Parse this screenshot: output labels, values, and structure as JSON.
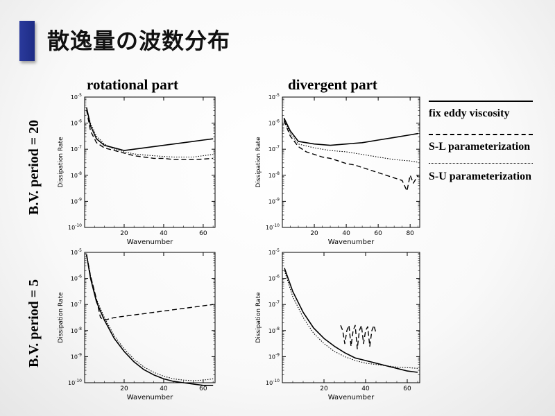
{
  "slide": {
    "title": "散逸量の波数分布",
    "col_titles": [
      "rotational part",
      "divergent part"
    ],
    "row_titles": [
      "B.V. period = 20",
      "B.V. period = 5"
    ]
  },
  "legend": [
    {
      "name": "fix eddy viscosity",
      "style": "solid"
    },
    {
      "name": "S-L parameterization",
      "style": "dashed"
    },
    {
      "name": "S-U parameterization",
      "style": "dotted"
    }
  ],
  "chart_data": [
    {
      "type": "line",
      "id": "top-left",
      "xlabel": "Wavenumber",
      "ylabel": "Dissipation Rate",
      "xlim": [
        0,
        66
      ],
      "ylim_log10": [
        -10,
        -5
      ],
      "xticks": [
        20,
        40,
        60
      ],
      "xtick_labels": [
        "20",
        "40",
        "60"
      ],
      "yticks": [
        -10,
        -9,
        -8,
        -7,
        -6,
        -5
      ],
      "ytick_labels": [
        "10-10",
        "10-9",
        "10-8",
        "10-7",
        "10-6",
        "10-5"
      ],
      "series": [
        {
          "style": "solid",
          "x": [
            1,
            3,
            6,
            10,
            15,
            20,
            25,
            30,
            35,
            40,
            45,
            50,
            55,
            60,
            65
          ],
          "log10_y": [
            -5.4,
            -6.1,
            -6.6,
            -6.85,
            -6.95,
            -7.05,
            -7.0,
            -6.95,
            -6.9,
            -6.85,
            -6.8,
            -6.75,
            -6.7,
            -6.65,
            -6.6
          ]
        },
        {
          "style": "dashed",
          "x": [
            1,
            3,
            6,
            10,
            15,
            20,
            25,
            30,
            35,
            40,
            45,
            50,
            55,
            60,
            65
          ],
          "log10_y": [
            -5.5,
            -6.3,
            -6.75,
            -6.95,
            -7.05,
            -7.15,
            -7.25,
            -7.3,
            -7.35,
            -7.35,
            -7.4,
            -7.4,
            -7.4,
            -7.38,
            -7.35
          ]
        },
        {
          "style": "dotted",
          "x": [
            1,
            3,
            6,
            10,
            15,
            20,
            25,
            30,
            35,
            40,
            45,
            50,
            55,
            60,
            65
          ],
          "log10_y": [
            -5.45,
            -6.0,
            -6.5,
            -6.8,
            -7.0,
            -7.1,
            -7.18,
            -7.22,
            -7.25,
            -7.28,
            -7.3,
            -7.3,
            -7.3,
            -7.25,
            -7.2
          ]
        }
      ]
    },
    {
      "type": "line",
      "id": "top-right",
      "xlabel": "Wavenumber",
      "ylabel": "Dissipation Rate",
      "xlim": [
        0,
        86
      ],
      "ylim_log10": [
        -10,
        -5
      ],
      "xticks": [
        20,
        40,
        60,
        80
      ],
      "xtick_labels": [
        "20",
        "40",
        "60",
        "80"
      ],
      "yticks": [
        -10,
        -9,
        -8,
        -7,
        -6,
        -5
      ],
      "ytick_labels": [
        "10-10",
        "10-9",
        "10-8",
        "10-7",
        "10-6",
        "10-5"
      ],
      "series": [
        {
          "style": "solid",
          "x": [
            1,
            5,
            10,
            20,
            30,
            40,
            50,
            60,
            70,
            80,
            85
          ],
          "log10_y": [
            -5.8,
            -6.3,
            -6.7,
            -6.8,
            -6.85,
            -6.8,
            -6.75,
            -6.65,
            -6.55,
            -6.45,
            -6.4
          ]
        },
        {
          "style": "dashed",
          "x": [
            1,
            5,
            10,
            15,
            20,
            25,
            30,
            35,
            40,
            45,
            50,
            55,
            60,
            65,
            70,
            75,
            78,
            80,
            82,
            85
          ],
          "log10_y": [
            -5.9,
            -6.5,
            -6.9,
            -7.1,
            -7.2,
            -7.3,
            -7.35,
            -7.45,
            -7.55,
            -7.6,
            -7.7,
            -7.8,
            -7.9,
            -8.0,
            -8.1,
            -8.2,
            -8.6,
            -8.0,
            -8.3,
            -8.0
          ]
        },
        {
          "style": "dotted",
          "x": [
            1,
            5,
            10,
            20,
            30,
            40,
            50,
            60,
            70,
            80,
            85
          ],
          "log10_y": [
            -5.85,
            -6.4,
            -6.8,
            -6.95,
            -7.05,
            -7.1,
            -7.2,
            -7.3,
            -7.4,
            -7.45,
            -7.5
          ]
        }
      ]
    },
    {
      "type": "line",
      "id": "bottom-left",
      "xlabel": "Wavenumber",
      "ylabel": "Dissipation Rate",
      "xlim": [
        0,
        66
      ],
      "ylim_log10": [
        -10,
        -5
      ],
      "xticks": [
        20,
        40,
        60
      ],
      "xtick_labels": [
        "20",
        "40",
        "60"
      ],
      "yticks": [
        -10,
        -9,
        -8,
        -7,
        -6,
        -5
      ],
      "ytick_labels": [
        "10-10",
        "10-9",
        "10-8",
        "10-7",
        "10-6",
        "10-5"
      ],
      "series": [
        {
          "style": "solid",
          "x": [
            1,
            3,
            6,
            10,
            15,
            20,
            25,
            30,
            35,
            40,
            45,
            50,
            55,
            60,
            65
          ],
          "log10_y": [
            -5.1,
            -6.0,
            -6.9,
            -7.6,
            -8.3,
            -8.8,
            -9.2,
            -9.5,
            -9.7,
            -9.85,
            -9.95,
            -10.0,
            -10.05,
            -10.1,
            -10.1
          ]
        },
        {
          "style": "dashed",
          "x": [
            1,
            3,
            6,
            8,
            10,
            15,
            20,
            25,
            30,
            35,
            40,
            45,
            50,
            55,
            60,
            65
          ],
          "log10_y": [
            -5.1,
            -5.9,
            -6.8,
            -7.5,
            -7.6,
            -7.5,
            -7.45,
            -7.4,
            -7.35,
            -7.3,
            -7.25,
            -7.2,
            -7.15,
            -7.1,
            -7.05,
            -7.0
          ]
        },
        {
          "style": "dotted",
          "x": [
            1,
            3,
            6,
            10,
            15,
            20,
            25,
            30,
            35,
            40,
            45,
            50,
            55,
            60,
            65
          ],
          "log10_y": [
            -5.05,
            -5.9,
            -6.8,
            -7.5,
            -8.2,
            -8.7,
            -9.1,
            -9.4,
            -9.6,
            -9.75,
            -9.85,
            -9.9,
            -9.92,
            -9.9,
            -9.85
          ]
        }
      ]
    },
    {
      "type": "line",
      "id": "bottom-right",
      "xlabel": "Wavenumber",
      "ylabel": "Dissipation Rate",
      "xlim": [
        0,
        66
      ],
      "ylim_log10": [
        -10,
        -5
      ],
      "xticks": [
        20,
        40,
        60
      ],
      "xtick_labels": [
        "20",
        "40",
        "60"
      ],
      "yticks": [
        -10,
        -9,
        -8,
        -7,
        -6,
        -5
      ],
      "ytick_labels": [
        "10-10",
        "10-9",
        "10-8",
        "10-7",
        "10-6",
        "10-5"
      ],
      "series": [
        {
          "style": "solid",
          "x": [
            1,
            5,
            10,
            15,
            20,
            25,
            30,
            35,
            40,
            45,
            50,
            55,
            60,
            65
          ],
          "log10_y": [
            -5.6,
            -6.5,
            -7.3,
            -7.9,
            -8.3,
            -8.6,
            -8.85,
            -9.05,
            -9.15,
            -9.25,
            -9.35,
            -9.45,
            -9.55,
            -9.6
          ]
        },
        {
          "style": "dashed",
          "x": [
            28,
            29,
            30,
            31,
            32,
            33,
            34,
            35,
            36,
            37,
            38,
            39,
            40,
            41,
            42,
            43,
            44,
            45
          ],
          "log10_y": [
            -7.8,
            -8.0,
            -8.5,
            -8.0,
            -7.8,
            -8.6,
            -8.0,
            -7.8,
            -8.7,
            -8.0,
            -7.8,
            -8.5,
            -8.0,
            -7.85,
            -8.6,
            -8.0,
            -7.8,
            -8.1
          ]
        },
        {
          "style": "dotted",
          "x": [
            1,
            5,
            10,
            15,
            20,
            25,
            30,
            35,
            40,
            45,
            50,
            55,
            60,
            65
          ],
          "log10_y": [
            -5.7,
            -6.7,
            -7.5,
            -8.1,
            -8.5,
            -8.8,
            -9.0,
            -9.15,
            -9.25,
            -9.3,
            -9.35,
            -9.4,
            -9.42,
            -9.45
          ]
        }
      ]
    }
  ]
}
